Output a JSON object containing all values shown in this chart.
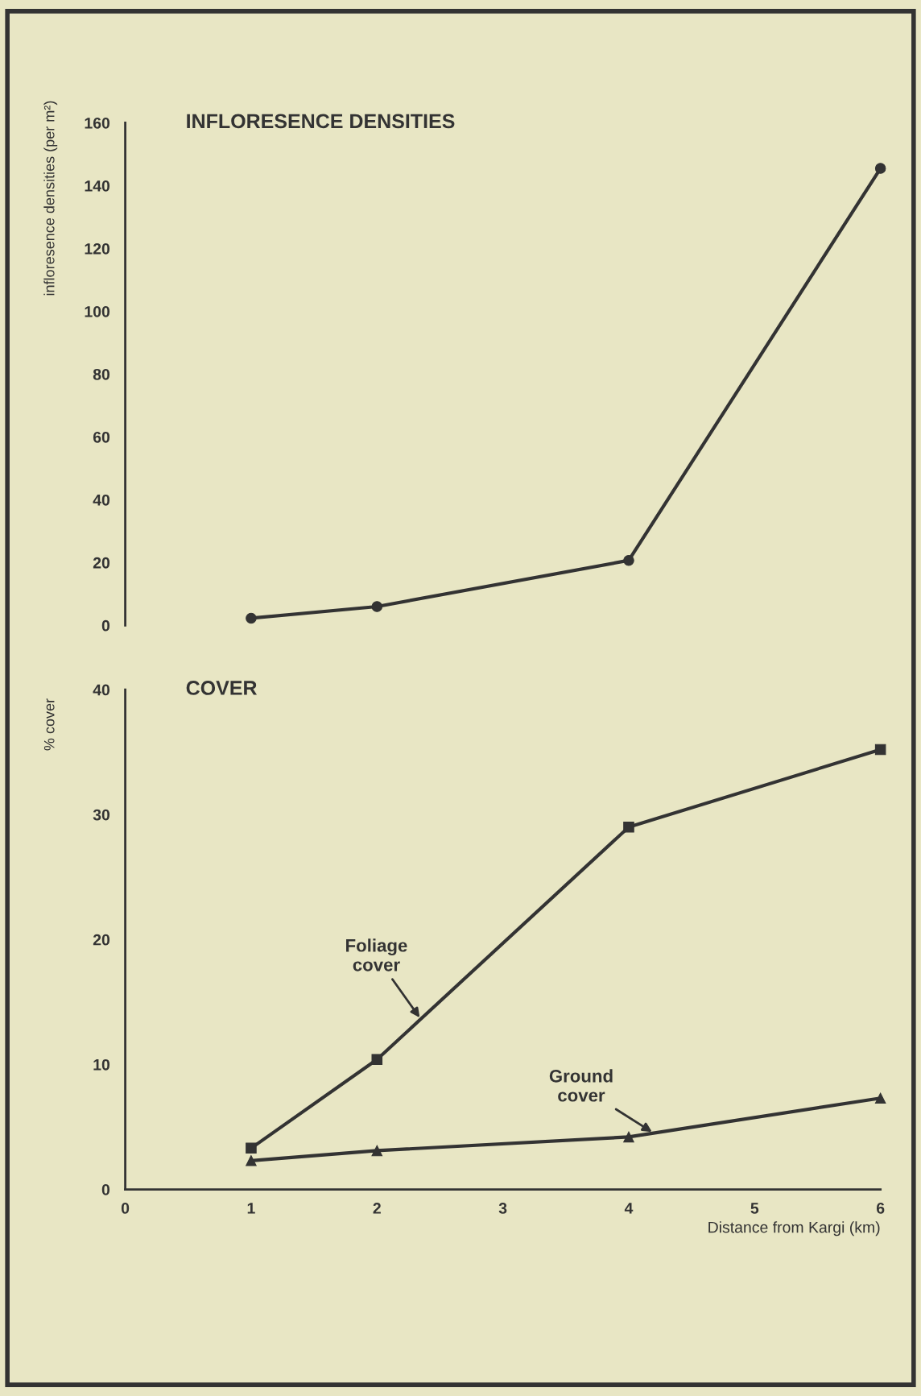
{
  "chart_data": [
    {
      "type": "line",
      "title": "INFLORESENCE DENSITIES",
      "ylabel": "infloresence densities (per m²)",
      "x": [
        1,
        2,
        4,
        6
      ],
      "series": [
        {
          "color": "#333333",
          "values": [
            2.3,
            6,
            20.7,
            145.5
          ],
          "marker": "circle"
        }
      ],
      "xlim": [
        0,
        6
      ],
      "ylim": [
        0,
        160
      ],
      "yticks": [
        0,
        20,
        40,
        60,
        80,
        100,
        120,
        140,
        160
      ],
      "tick_labels": "y",
      "grid": false,
      "legend": false
    },
    {
      "type": "line",
      "title": "COVER",
      "ylabel": "% cover",
      "xlabel": "Distance from Kargi (km)",
      "x": [
        1,
        2,
        4,
        6
      ],
      "series": [
        {
          "color": "#333333",
          "values": [
            3.3,
            10.4,
            29,
            35.2
          ],
          "marker": "square"
        },
        {
          "color": "#333333",
          "values": [
            2.3,
            3.1,
            4.2,
            7.3
          ],
          "marker": "triangle"
        }
      ],
      "xlim": [
        0,
        6
      ],
      "xticks": [
        0,
        1,
        2,
        3,
        4,
        5,
        6
      ],
      "ylim": [
        0,
        40
      ],
      "yticks": [
        0,
        10,
        20,
        30,
        40
      ],
      "grid": false,
      "legend": false,
      "annotations": [
        {
          "text": "Foliage\ncover",
          "x": 2.35,
          "y": 13.6
        },
        {
          "text": "Ground\ncover",
          "x": 4.2,
          "y": 4.5
        }
      ]
    }
  ]
}
